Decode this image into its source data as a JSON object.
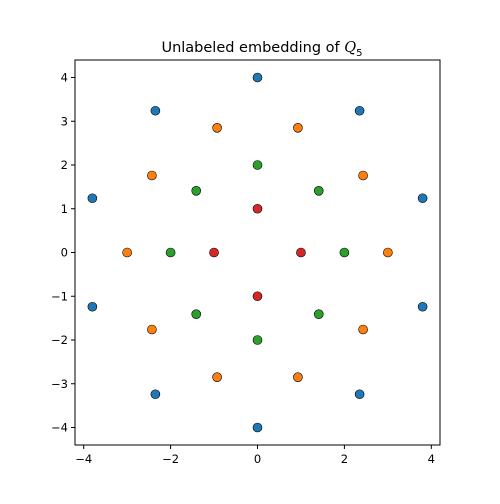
{
  "chart_data": {
    "type": "scatter",
    "title": "Unlabeled embedding of ",
    "title_math": "Q",
    "title_subscript": "5",
    "xlabel": "",
    "ylabel": "",
    "xlim": [
      -4.2,
      4.2
    ],
    "ylim": [
      -4.4,
      4.4
    ],
    "xticks": [
      -4,
      -2,
      0,
      2,
      4
    ],
    "yticks": [
      -4,
      -3,
      -2,
      -1,
      0,
      1,
      2,
      3,
      4
    ],
    "grid": false,
    "legend": "none",
    "series": [
      {
        "color": "#1f77b4",
        "points": [
          [
            0,
            4
          ],
          [
            -2.35,
            3.24
          ],
          [
            2.35,
            3.24
          ],
          [
            -3.8,
            1.24
          ],
          [
            3.8,
            1.24
          ],
          [
            -3.8,
            -1.24
          ],
          [
            3.8,
            -1.24
          ],
          [
            -2.35,
            -3.24
          ],
          [
            2.35,
            -3.24
          ],
          [
            0,
            -4
          ]
        ]
      },
      {
        "color": "#ff7f0e",
        "points": [
          [
            -0.93,
            2.85
          ],
          [
            0.93,
            2.85
          ],
          [
            -2.43,
            1.76
          ],
          [
            2.43,
            1.76
          ],
          [
            -3,
            0
          ],
          [
            3,
            0
          ],
          [
            -2.43,
            -1.76
          ],
          [
            2.43,
            -1.76
          ],
          [
            -0.93,
            -2.85
          ],
          [
            0.93,
            -2.85
          ]
        ]
      },
      {
        "color": "#2ca02c",
        "points": [
          [
            0,
            2
          ],
          [
            -1.41,
            1.41
          ],
          [
            1.41,
            1.41
          ],
          [
            -2,
            0
          ],
          [
            2,
            0
          ],
          [
            -1.41,
            -1.41
          ],
          [
            1.41,
            -1.41
          ],
          [
            0,
            -2
          ]
        ]
      },
      {
        "color": "#d62728",
        "points": [
          [
            0,
            1
          ],
          [
            -1,
            0
          ],
          [
            1,
            0
          ],
          [
            0,
            -1
          ]
        ]
      }
    ]
  }
}
